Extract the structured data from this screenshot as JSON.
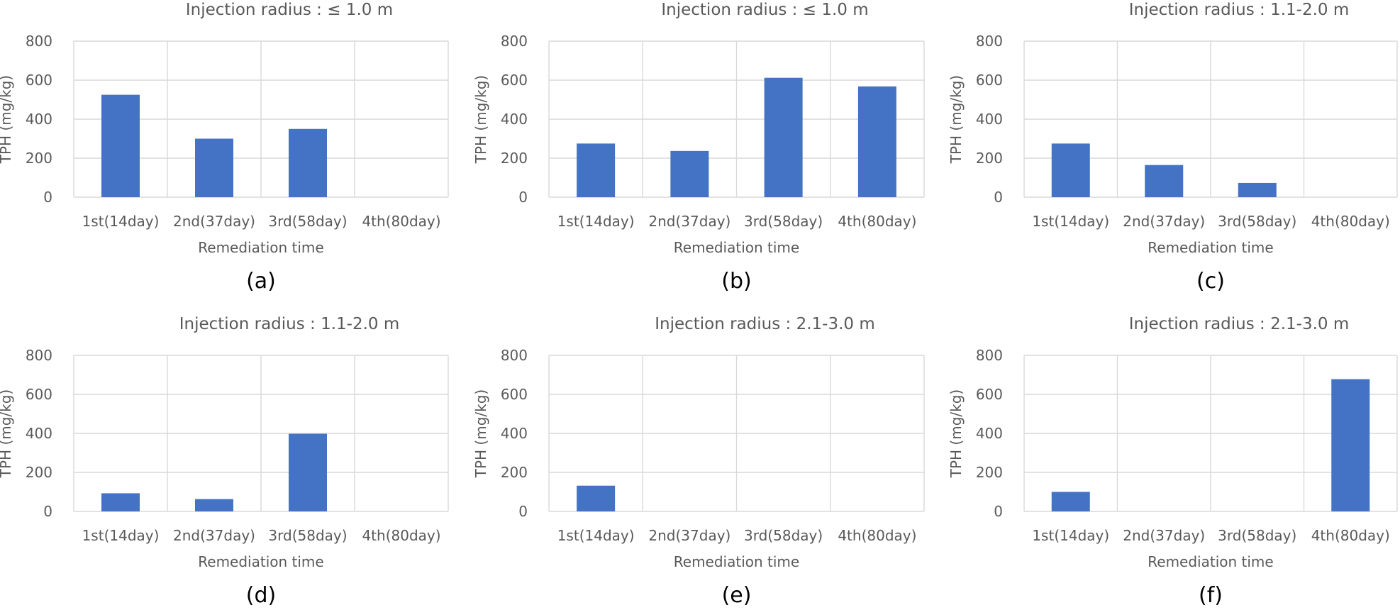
{
  "figure": {
    "bar_color": "#4472c4",
    "grid_color": "#d9d9d9",
    "text_color": "#595959"
  },
  "chart_data": [
    {
      "type": "bar",
      "panel_label": "(a)",
      "title": "Injection radius : ≤ 1.0 m",
      "xlabel": "Remediation time",
      "ylabel": "TPH (mg/kg)",
      "categories": [
        "1st(14day)",
        "2nd(37day)",
        "3rd(58day)",
        "4th(80day)"
      ],
      "values": [
        525,
        300,
        350,
        0
      ],
      "ylim": [
        0,
        800
      ],
      "yticks": [
        0,
        200,
        400,
        600,
        800
      ],
      "grid": true
    },
    {
      "type": "bar",
      "panel_label": "(b)",
      "title": "Injection radius : ≤ 1.0 m",
      "xlabel": "Remediation time",
      "ylabel": "TPH (mg/kg)",
      "categories": [
        "1st(14day)",
        "2nd(37day)",
        "3rd(58day)",
        "4th(80day)"
      ],
      "values": [
        275,
        237,
        612,
        568
      ],
      "ylim": [
        0,
        800
      ],
      "yticks": [
        0,
        200,
        400,
        600,
        800
      ],
      "grid": true
    },
    {
      "type": "bar",
      "panel_label": "(c)",
      "title": "Injection radius : 1.1-2.0 m",
      "xlabel": "Remediation time",
      "ylabel": "TPH (mg/kg)",
      "categories": [
        "1st(14day)",
        "2nd(37day)",
        "3rd(58day)",
        "4th(80day)"
      ],
      "values": [
        275,
        165,
        73,
        0
      ],
      "ylim": [
        0,
        800
      ],
      "yticks": [
        0,
        200,
        400,
        600,
        800
      ],
      "grid": true
    },
    {
      "type": "bar",
      "panel_label": "(d)",
      "title": "Injection radius : 1.1-2.0 m",
      "xlabel": "Remediation time",
      "ylabel": "TPH (mg/kg)",
      "categories": [
        "1st(14day)",
        "2nd(37day)",
        "3rd(58day)",
        "4th(80day)"
      ],
      "values": [
        93,
        63,
        398,
        0
      ],
      "ylim": [
        0,
        800
      ],
      "yticks": [
        0,
        200,
        400,
        600,
        800
      ],
      "grid": true
    },
    {
      "type": "bar",
      "panel_label": "(e)",
      "title": "Injection radius : 2.1-3.0 m",
      "xlabel": "Remediation time",
      "ylabel": "TPH (mg/kg)",
      "categories": [
        "1st(14day)",
        "2nd(37day)",
        "3rd(58day)",
        "4th(80day)"
      ],
      "values": [
        132,
        0,
        0,
        0
      ],
      "ylim": [
        0,
        800
      ],
      "yticks": [
        0,
        200,
        400,
        600,
        800
      ],
      "grid": true
    },
    {
      "type": "bar",
      "panel_label": "(f)",
      "title": "Injection radius : 2.1-3.0 m",
      "xlabel": "Remediation time",
      "ylabel": "TPH (mg/kg)",
      "categories": [
        "1st(14day)",
        "2nd(37day)",
        "3rd(58day)",
        "4th(80day)"
      ],
      "values": [
        100,
        0,
        0,
        678
      ],
      "ylim": [
        0,
        800
      ],
      "yticks": [
        0,
        200,
        400,
        600,
        800
      ],
      "grid": true
    }
  ]
}
